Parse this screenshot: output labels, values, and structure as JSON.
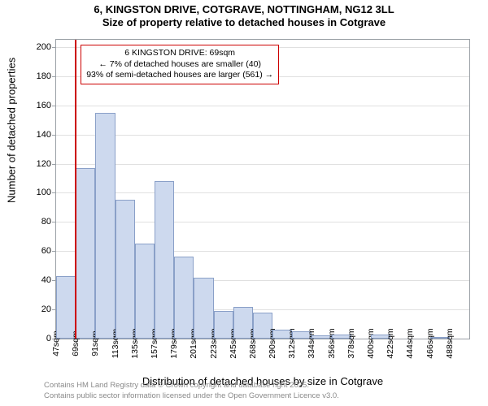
{
  "title": {
    "line1": "6, KINGSTON DRIVE, COTGRAVE, NOTTINGHAM, NG12 3LL",
    "line2": "Size of property relative to detached houses in Cotgrave"
  },
  "chart": {
    "type": "histogram",
    "background_color": "#ffffff",
    "grid_color": "#e0e0e0",
    "axis_color": "#9aa0a6",
    "bar_fill": "#cdd9ee",
    "bar_stroke": "#8aa0c8",
    "marker_color": "#cc0000",
    "ylabel": "Number of detached properties",
    "xlabel": "Distribution of detached houses by size in Cotgrave",
    "ylim": [
      0,
      205
    ],
    "ytick_step": 20,
    "yticks": [
      0,
      20,
      40,
      60,
      80,
      100,
      120,
      140,
      160,
      180,
      200
    ],
    "x_first_value": 47,
    "x_step": 22,
    "x_tick_count": 21,
    "x_unit": "sqm",
    "x_ticks": [
      "47sqm",
      "69sqm",
      "91sqm",
      "113sqm",
      "135sqm",
      "157sqm",
      "179sqm",
      "201sqm",
      "223sqm",
      "245sqm",
      "268sqm",
      "290sqm",
      "312sqm",
      "334sqm",
      "356sqm",
      "378sqm",
      "400sqm",
      "422sqm",
      "444sqm",
      "466sqm",
      "488sqm"
    ],
    "bars": [
      43,
      117,
      155,
      95,
      65,
      108,
      56,
      42,
      19,
      22,
      18,
      6,
      5,
      2,
      3,
      0,
      3,
      0,
      0,
      1,
      0
    ],
    "bar_width_ratio": 1.0,
    "marker_x_value": 69,
    "annotation": {
      "lines": [
        "6 KINGSTON DRIVE: 69sqm",
        "← 7% of detached houses are smaller (40)",
        "93% of semi-detached houses are larger (561) →"
      ],
      "border_color": "#cc0000",
      "fontsize": 10.5
    }
  },
  "footer": {
    "line1": "Contains HM Land Registry data © Crown copyright and database right 2025.",
    "line2": "Contains public sector information licensed under the Open Government Licence v3.0."
  },
  "fontsizes": {
    "title": 13,
    "axis_label": 13,
    "tick": 11,
    "xtick": 10.5,
    "footer": 9.5
  }
}
